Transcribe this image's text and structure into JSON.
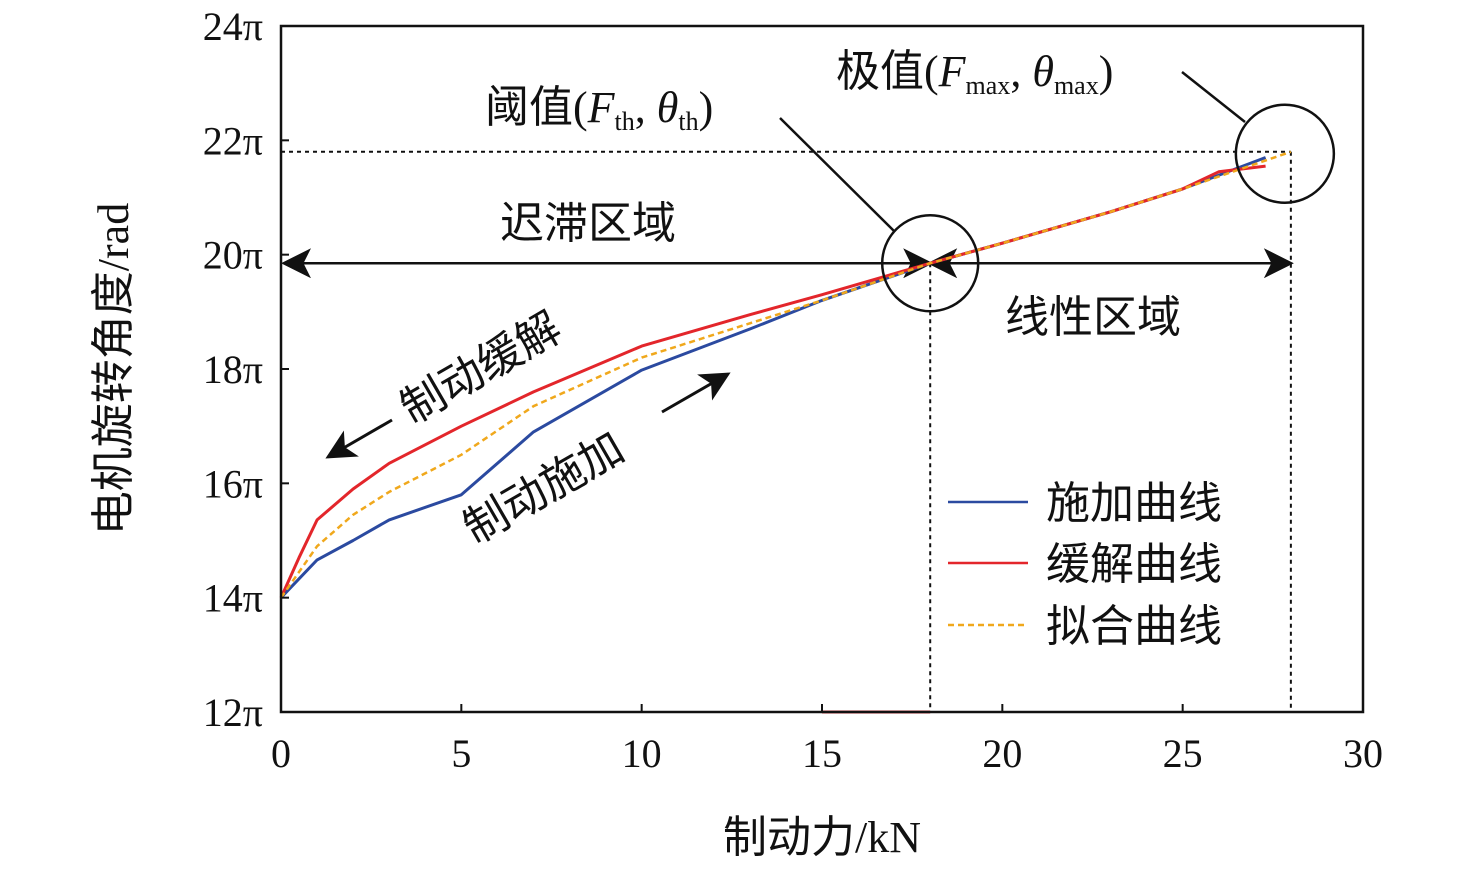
{
  "chart_data": {
    "type": "line",
    "xlabel": "制动力/kN",
    "ylabel": "电机旋转角度/rad",
    "xlim": [
      0,
      30
    ],
    "ylim_pi": [
      12,
      24
    ],
    "xticks": [
      0,
      5,
      10,
      15,
      20,
      25,
      30
    ],
    "xtick_labels": [
      "0",
      "5",
      "10",
      "15",
      "20",
      "25",
      "30"
    ],
    "yticks_pi": [
      12,
      14,
      16,
      18,
      20,
      22,
      24
    ],
    "ytick_labels": [
      "12π",
      "14π",
      "16π",
      "18π",
      "20π",
      "22π",
      "24π"
    ],
    "grid": false,
    "legend_position": "bottom-right",
    "series": [
      {
        "name": "施加曲线",
        "color": "#2b4aa0",
        "style": "solid",
        "x": [
          0,
          1,
          2,
          3,
          5,
          7,
          10,
          13,
          15,
          18,
          20,
          23,
          25,
          27.3
        ],
        "y_pi": [
          14.0,
          14.66,
          15.0,
          15.36,
          15.8,
          16.9,
          17.98,
          18.7,
          19.2,
          19.85,
          20.2,
          20.75,
          21.15,
          21.7
        ]
      },
      {
        "name": "缓解曲线",
        "color": "#e3262b",
        "style": "solid",
        "x": [
          0,
          0.5,
          1,
          2,
          3,
          5,
          7,
          10,
          13,
          15,
          18,
          20,
          23,
          25,
          26,
          27.3
        ],
        "y_pi": [
          14.0,
          14.7,
          15.36,
          15.9,
          16.35,
          17.0,
          17.6,
          18.4,
          18.95,
          19.3,
          19.85,
          20.2,
          20.75,
          21.15,
          21.45,
          21.55
        ]
      },
      {
        "name": "拟合曲线",
        "color": "#f0a81c",
        "style": "dashed",
        "x": [
          0,
          1,
          2,
          3,
          5,
          7,
          10,
          13,
          15,
          18,
          20,
          23,
          25,
          28
        ],
        "y_pi": [
          14.0,
          14.9,
          15.45,
          15.85,
          16.5,
          17.35,
          18.2,
          18.8,
          19.2,
          19.85,
          20.2,
          20.75,
          21.15,
          21.8
        ]
      }
    ],
    "threshold_point": {
      "x": 18,
      "y_pi": 19.85
    },
    "max_point": {
      "x": 28,
      "y_pi": 21.8
    },
    "annotations": {
      "threshold_prefix": "阈值(",
      "threshold_F": "F",
      "threshold_sub": "th",
      "threshold_theta": "θ",
      "max_prefix": "极值(",
      "max_F": "F",
      "max_sub": "max",
      "max_theta": "θ",
      "comma": ", ",
      "close": ")",
      "hysteresis_region": "迟滞区域",
      "linear_region": "线性区域",
      "release": "制动缓解",
      "apply": "制动施加"
    }
  }
}
